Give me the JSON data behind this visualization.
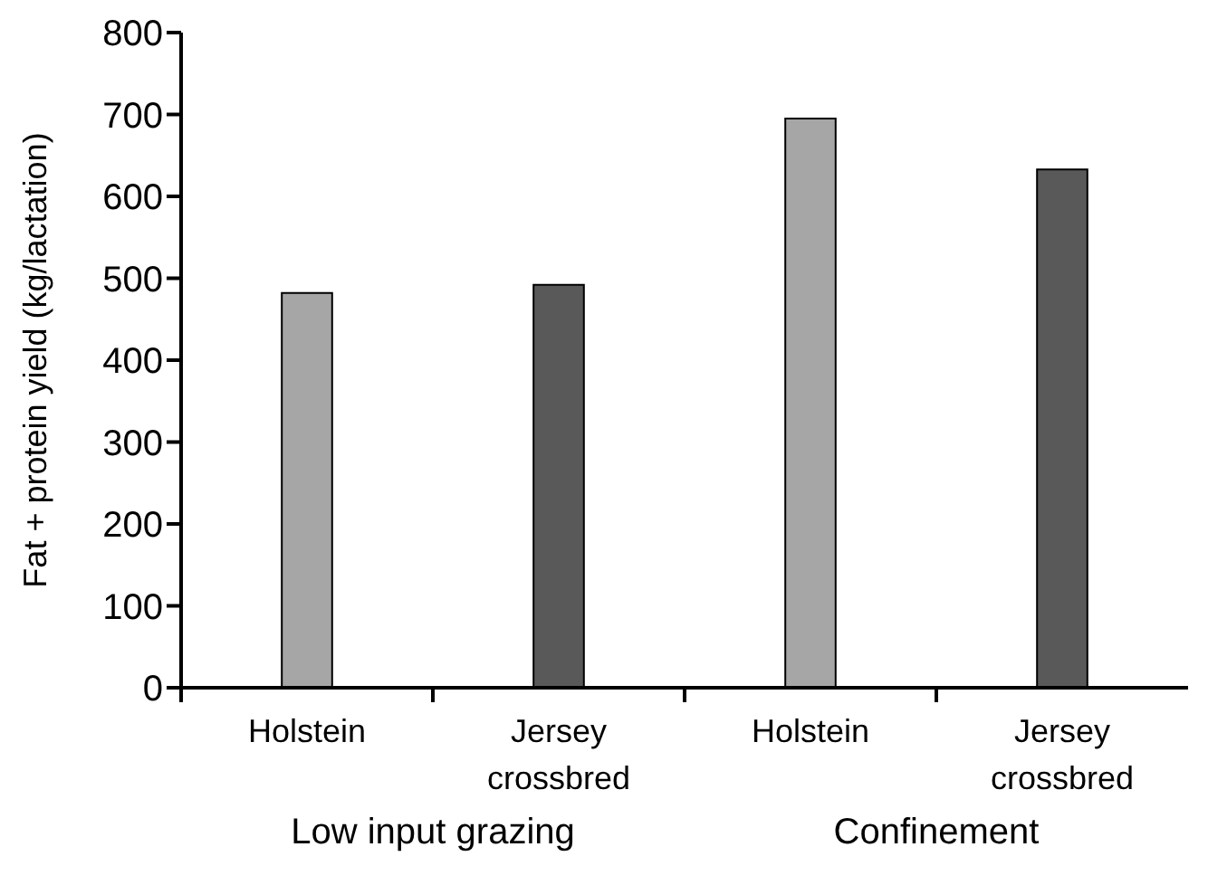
{
  "chart_data": {
    "type": "bar",
    "ylabel": "Fat + protein yield (kg/lactation)",
    "categories": [
      "Holstein",
      "Jersey crossbred",
      "Holstein",
      "Jersey crossbred"
    ],
    "values": [
      482,
      492,
      695,
      633
    ],
    "colors": [
      "#a6a6a6",
      "#595959",
      "#a6a6a6",
      "#595959"
    ],
    "ylim": [
      0,
      800
    ],
    "yticks": [
      0,
      100,
      200,
      300,
      400,
      500,
      600,
      700,
      800
    ],
    "annotations": [
      "Low input grazing",
      "Confinement"
    ],
    "grid": false,
    "legend": false
  }
}
